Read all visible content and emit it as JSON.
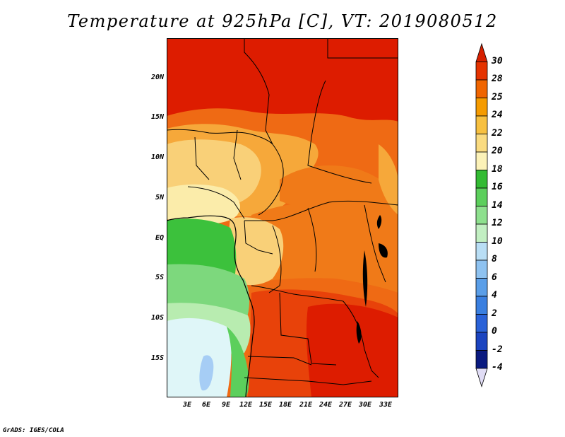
{
  "title": "Temperature at 925hPa [C], VT: 2019080512",
  "footer": "GrADS: IGES/COLA",
  "map": {
    "lat_labels": [
      "20N",
      "15N",
      "10N",
      "5N",
      "EQ",
      "5S",
      "10S",
      "15S"
    ],
    "lon_labels": [
      "3E",
      "6E",
      "9E",
      "12E",
      "15E",
      "18E",
      "21E",
      "24E",
      "27E",
      "30E",
      "33E"
    ]
  },
  "colorbar": {
    "labels": [
      "30",
      "28",
      "25",
      "24",
      "22",
      "20",
      "18",
      "16",
      "14",
      "12",
      "10",
      "8",
      "6",
      "4",
      "2",
      "0",
      "-2",
      "-4"
    ],
    "colors": [
      "#d62000",
      "#e53300",
      "#f06500",
      "#f59b00",
      "#f7c040",
      "#fadb80",
      "#fcf2b8",
      "#33bb33",
      "#5ccf5c",
      "#8ee08e",
      "#c2efc2",
      "#b9def5",
      "#8ec2f0",
      "#5a9ee8",
      "#3a7fe0",
      "#2a62d8",
      "#1b44c0",
      "#0a1a80",
      "#e0dcf5"
    ]
  },
  "colors": {
    "hot": "#dd1c00",
    "warm": "#e8420a",
    "orange": "#f07a18",
    "lightorange": "#f6a83a",
    "yellow": "#f9d078",
    "cream": "#fbecaa",
    "green": "#3cc13c",
    "lightgreen": "#7dd87d",
    "palegreen": "#b8ecb0",
    "ice": "#dff6f8",
    "lake": "#a6cdf5"
  }
}
